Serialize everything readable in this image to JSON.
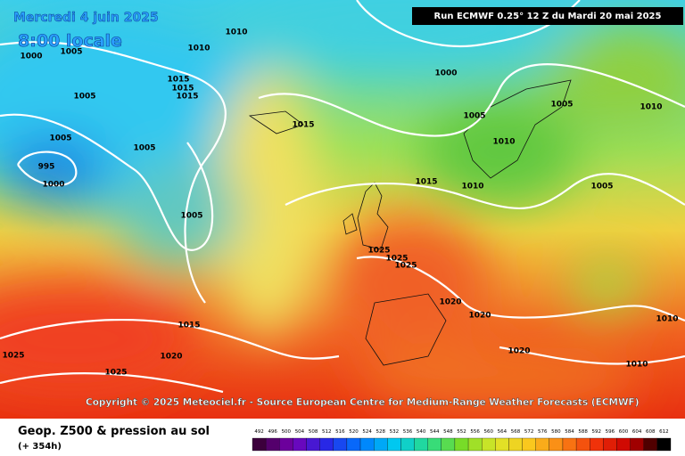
{
  "header": {
    "date": "Mercredi 4 juin 2025",
    "time": "8:00 locale",
    "run": "Run ECMWF 0.25° 12 Z du Mardi 20 mai 2025"
  },
  "copyright": "Copyright © 2025 Meteociel.fr - Source European Centre for Medium-Range Weather Forecasts (ECMWF)",
  "footer": {
    "title": "Geop. Z500 & pression au sol",
    "lead": "(+ 354h)"
  },
  "isobar_labels": [
    1000,
    1005,
    1010,
    1010,
    1015,
    1015,
    1015,
    1005,
    1005,
    1005,
    995,
    1000,
    1005,
    1000,
    1005,
    1005,
    1010,
    1015,
    1010,
    1015,
    1010,
    1005,
    1025,
    1025,
    1025,
    1020,
    1020,
    1015,
    1020,
    1025,
    1025,
    1020,
    1010,
    1010
  ],
  "legend": {
    "values": [
      492,
      496,
      500,
      504,
      508,
      512,
      516,
      520,
      524,
      528,
      532,
      536,
      540,
      544,
      548,
      552,
      556,
      560,
      564,
      568,
      572,
      576,
      580,
      584,
      588,
      592,
      596,
      600,
      604,
      608,
      612
    ]
  }
}
